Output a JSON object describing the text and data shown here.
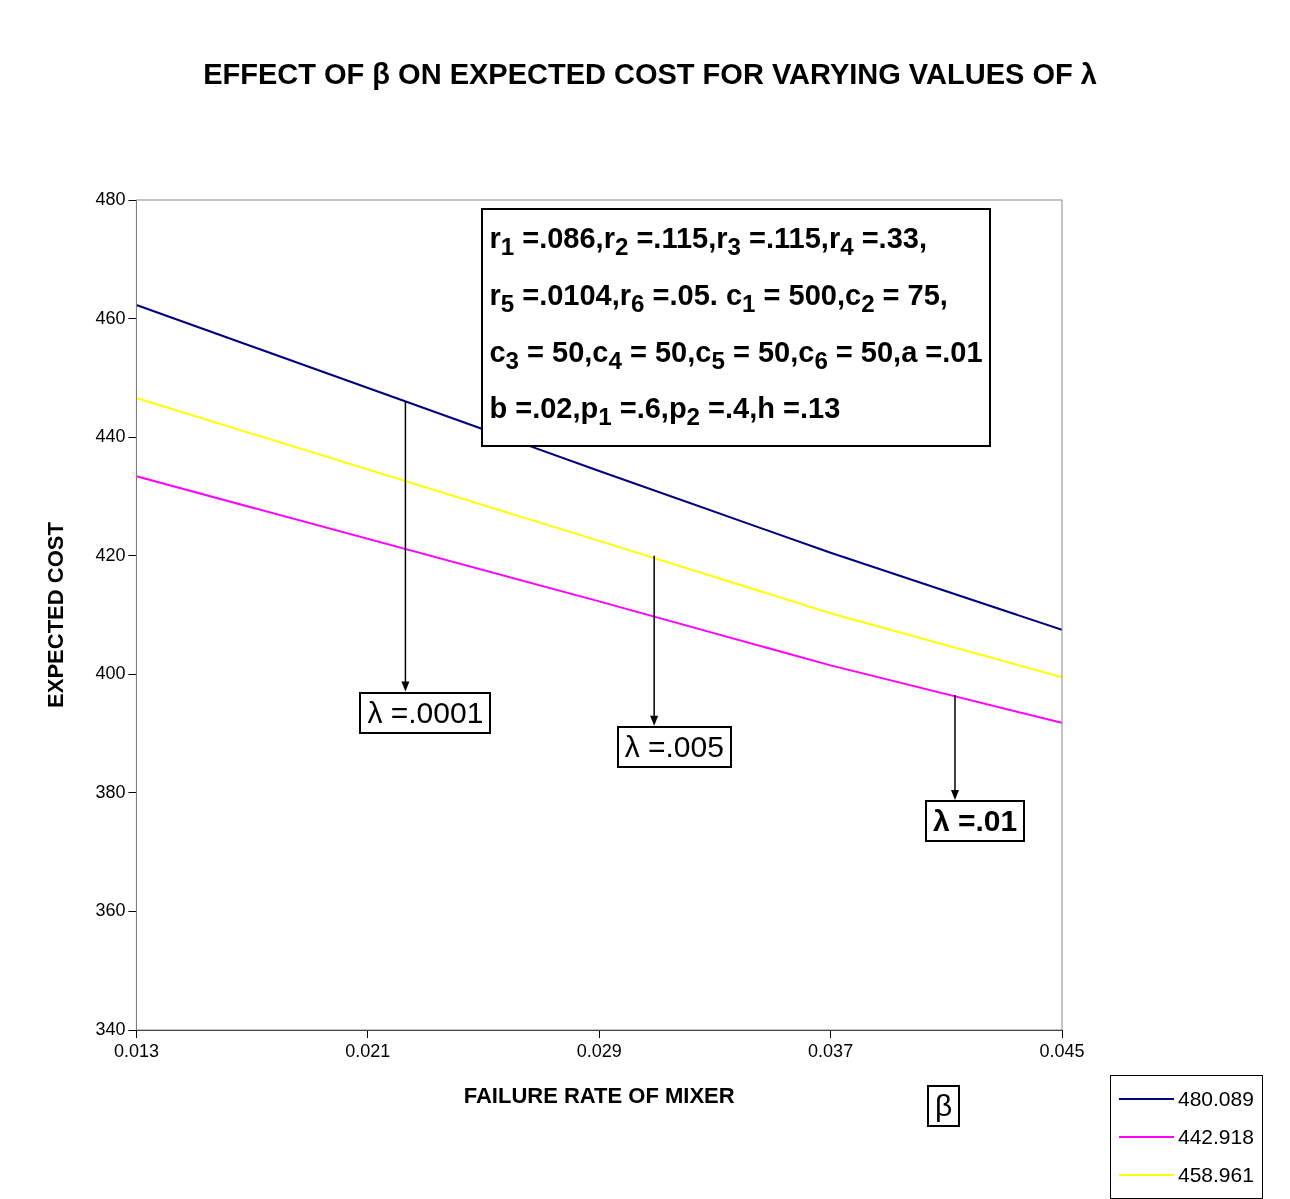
{
  "chart_data": {
    "type": "line",
    "title": "EFFECT OF β ON EXPECTED COST FOR VARYING VALUES OF λ",
    "xlabel": "FAILURE RATE OF MIXER",
    "ylabel": "EXPECTED COST",
    "x": [
      0.013,
      0.029,
      0.037,
      0.045
    ],
    "series": [
      {
        "name": "480.089",
        "color": "#000080",
        "values": [
          462.3,
          434.3,
          420.5,
          407.5
        ]
      },
      {
        "name": "442.918",
        "color": "#ff00ff",
        "values": [
          433.4,
          412.3,
          401.5,
          391.8
        ]
      },
      {
        "name": "458.961",
        "color": "#ffff00",
        "values": [
          446.6,
          422.5,
          410.3,
          399.5
        ]
      }
    ],
    "xlim": [
      0.013,
      0.045
    ],
    "xticks": [
      0.013,
      0.021,
      0.029,
      0.037,
      0.045
    ],
    "ylim": [
      340,
      480
    ],
    "yticks": [
      340,
      360,
      380,
      400,
      420,
      440,
      460,
      480
    ],
    "grid": false,
    "legend": "bottom right",
    "marker": "none",
    "line_style": "solid",
    "annotations": [
      "r$_{1}$ =.086,r$_{2}$ =.115,r$_{3}$ =.115,r$_{4}$ =.33,\nr$_{5}$ =.0104,r$_{6}$ =.05. c$_{1}$ = 500,c$_{2}$ = 75,\nc$_{3}$ = 50,c$_{4}$ = 50,c$_{5}$ = 50,c$_{6}$ = 50,a =.01\nb =.02,p$_{1}$ =.6,p$_{2}$ =.4,h =.13",
      {
        "text": "λ =.0001",
        "x": 0.0223,
        "y": 446
      },
      {
        "text": "λ =.005",
        "x": 0.0309,
        "y": 420
      },
      {
        "text": "λ =.01",
        "x": 0.0413,
        "y": 396.5
      },
      "β"
    ]
  }
}
